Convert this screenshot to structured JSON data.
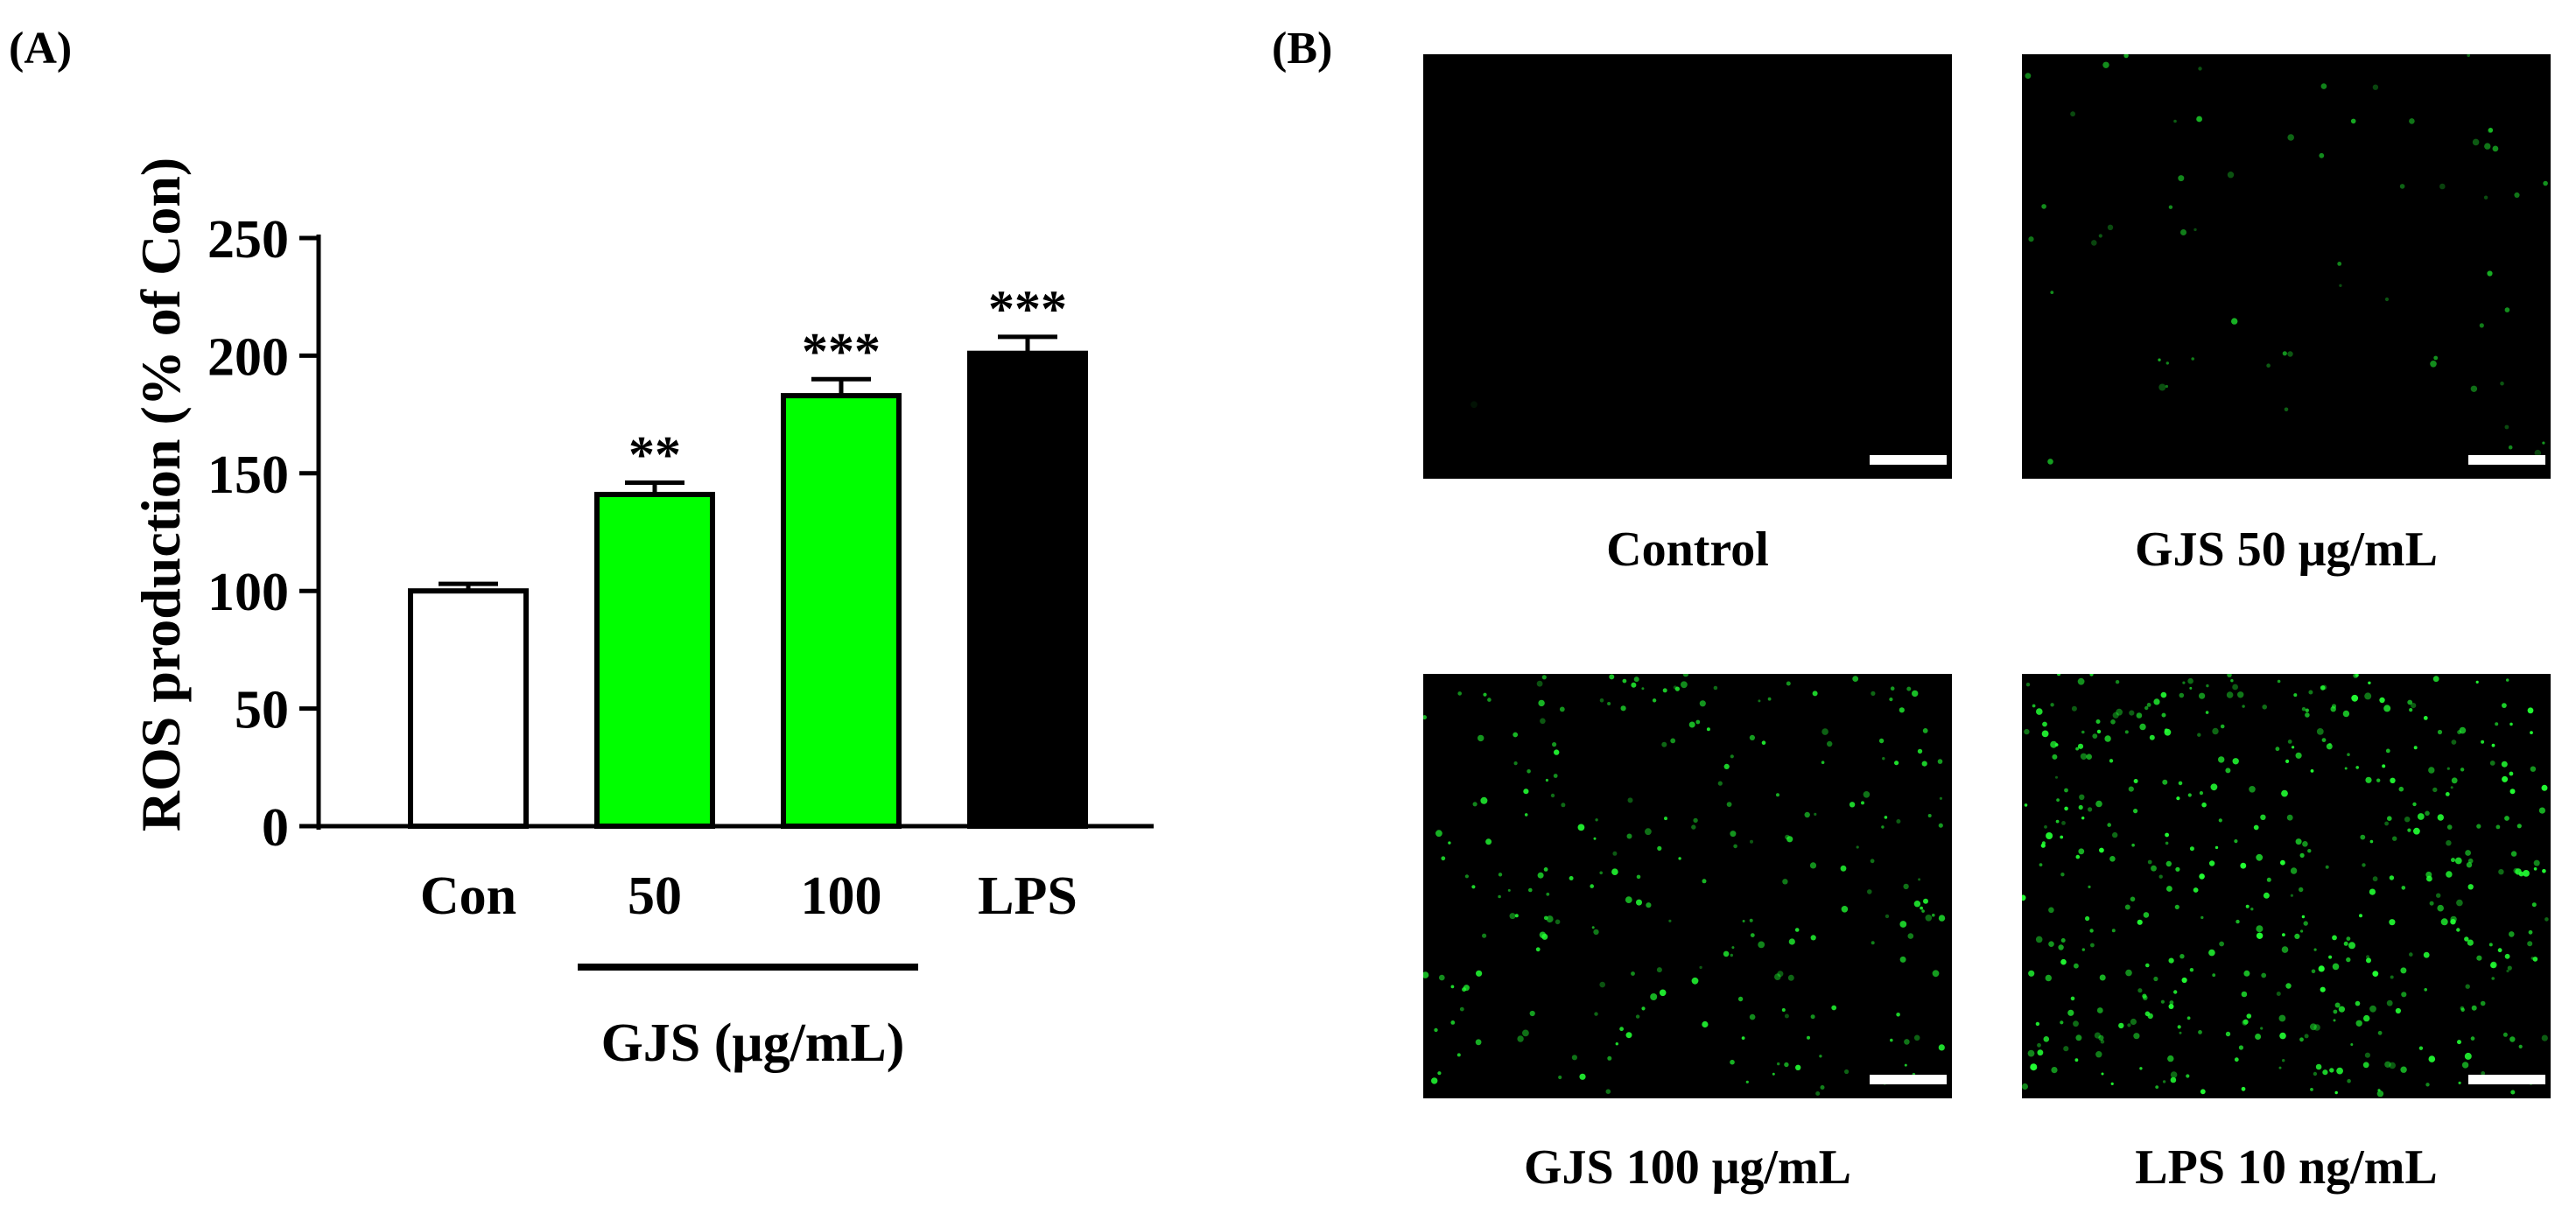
{
  "panels": {
    "a_label": "(A)",
    "b_label": "(B)"
  },
  "chart_data": {
    "type": "bar",
    "categories": [
      "Con",
      "50",
      "100",
      "LPS"
    ],
    "values": [
      100,
      141,
      183,
      201
    ],
    "errors": [
      3,
      5,
      7,
      7
    ],
    "significance": [
      "",
      "**",
      "***",
      "***"
    ],
    "colors": [
      "#ffffff",
      "#00ff00",
      "#00ff00",
      "#000000"
    ],
    "ylabel": "ROS production (% of Con)",
    "ylim": [
      0,
      250
    ],
    "yticks": [
      0,
      50,
      100,
      150,
      200,
      250
    ],
    "group_label": "GJS (μg/mL)",
    "group_categories": [
      "50",
      "100"
    ],
    "grid": false,
    "legend": "none"
  },
  "micrographs": [
    {
      "caption": "Control",
      "dots": 1,
      "brightness": 0.2
    },
    {
      "caption": "GJS 50 μg/mL",
      "dots": 60,
      "brightness": 0.7
    },
    {
      "caption": "GJS 100 μg/mL",
      "dots": 230,
      "brightness": 0.9
    },
    {
      "caption": "LPS 10 ng/mL",
      "dots": 450,
      "brightness": 1.0
    }
  ],
  "colors": {
    "fluorescence": "#22ff33",
    "background": "#000000"
  }
}
